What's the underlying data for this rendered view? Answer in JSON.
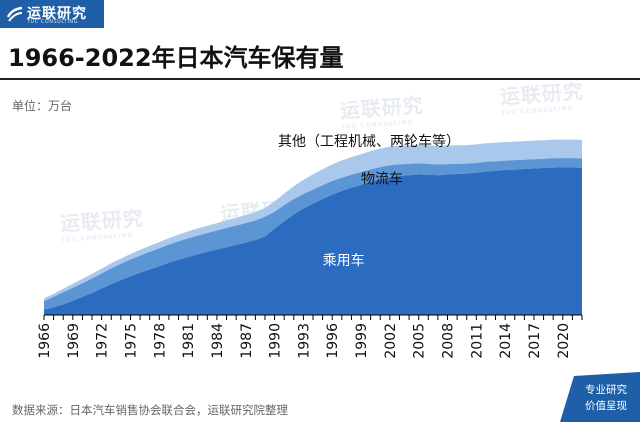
{
  "header": {
    "logo_text": "运联研究",
    "logo_subtext": "TUC CONSULTING",
    "title": "1966-2022年日本汽车保有量"
  },
  "unit_label": "单位：万台",
  "watermark": {
    "text": "运联研究",
    "subtext": "TUC CONSULTING"
  },
  "source_text": "数据来源：日本汽车销售协会联合会，运联研究院整理",
  "badge": {
    "line1": "专业研究",
    "line2": "价值呈现"
  },
  "colors": {
    "brand": "#1f5fa8",
    "passenger": "#2b6cc0",
    "logistics": "#5b95d4",
    "other": "#a9c8ec"
  },
  "chart_data": {
    "type": "area",
    "stacked": true,
    "x": [
      1966,
      1967,
      1968,
      1969,
      1970,
      1971,
      1972,
      1973,
      1974,
      1975,
      1976,
      1977,
      1978,
      1979,
      1980,
      1981,
      1982,
      1983,
      1984,
      1985,
      1986,
      1987,
      1988,
      1989,
      1990,
      1991,
      1992,
      1993,
      1994,
      1995,
      1996,
      1997,
      1998,
      1999,
      2000,
      2001,
      2002,
      2003,
      2004,
      2005,
      2006,
      2007,
      2008,
      2009,
      2010,
      2011,
      2012,
      2013,
      2014,
      2015,
      2016,
      2017,
      2018,
      2019,
      2020,
      2021,
      2022
    ],
    "x_tick_labels": [
      "1966",
      "1969",
      "1972",
      "1975",
      "1978",
      "1981",
      "1984",
      "1987",
      "1990",
      "1993",
      "1996",
      "1999",
      "2002",
      "2005",
      "2008",
      "2011",
      "2014",
      "2017",
      "2020"
    ],
    "ylim": [
      0,
      8400
    ],
    "y_axis_shown": false,
    "grid": false,
    "series": [
      {
        "name": "乘用车",
        "values": [
          230,
          330,
          460,
          610,
          780,
          950,
          1140,
          1330,
          1500,
          1670,
          1820,
          1960,
          2100,
          2250,
          2380,
          2500,
          2610,
          2720,
          2820,
          2920,
          3020,
          3120,
          3230,
          3380,
          3720,
          4040,
          4330,
          4580,
          4790,
          4990,
          5180,
          5340,
          5480,
          5600,
          5730,
          5840,
          5930,
          5990,
          6020,
          6050,
          6040,
          6020,
          6050,
          6070,
          6090,
          6130,
          6180,
          6210,
          6240,
          6260,
          6290,
          6310,
          6330,
          6350,
          6360,
          6360,
          6340
        ]
      },
      {
        "name": "物流车",
        "values": [
          370,
          450,
          520,
          560,
          590,
          620,
          650,
          680,
          700,
          720,
          740,
          760,
          770,
          780,
          790,
          800,
          810,
          810,
          820,
          830,
          830,
          840,
          840,
          850,
          730,
          690,
          660,
          630,
          610,
          600,
          590,
          570,
          560,
          550,
          540,
          530,
          520,
          500,
          490,
          480,
          470,
          460,
          450,
          440,
          430,
          420,
          420,
          410,
          410,
          410,
          400,
          400,
          400,
          400,
          400,
          400,
          400
        ]
      },
      {
        "name": "其他（工程机械、两轮车等）",
        "values": [
          120,
          130,
          150,
          170,
          190,
          200,
          210,
          220,
          230,
          240,
          250,
          260,
          270,
          280,
          290,
          300,
          310,
          310,
          320,
          330,
          340,
          350,
          360,
          380,
          450,
          500,
          560,
          610,
          660,
          690,
          720,
          750,
          760,
          780,
          790,
          800,
          800,
          800,
          800,
          800,
          800,
          800,
          800,
          800,
          800,
          800,
          800,
          800,
          800,
          800,
          800,
          800,
          800,
          800,
          800,
          800,
          800
        ]
      }
    ],
    "annotations": [
      {
        "series_index": 2,
        "text": "其他（工程机械、两轮车等）"
      },
      {
        "series_index": 1,
        "text": "物流车"
      },
      {
        "series_index": 0,
        "text": "乘用车"
      }
    ]
  }
}
